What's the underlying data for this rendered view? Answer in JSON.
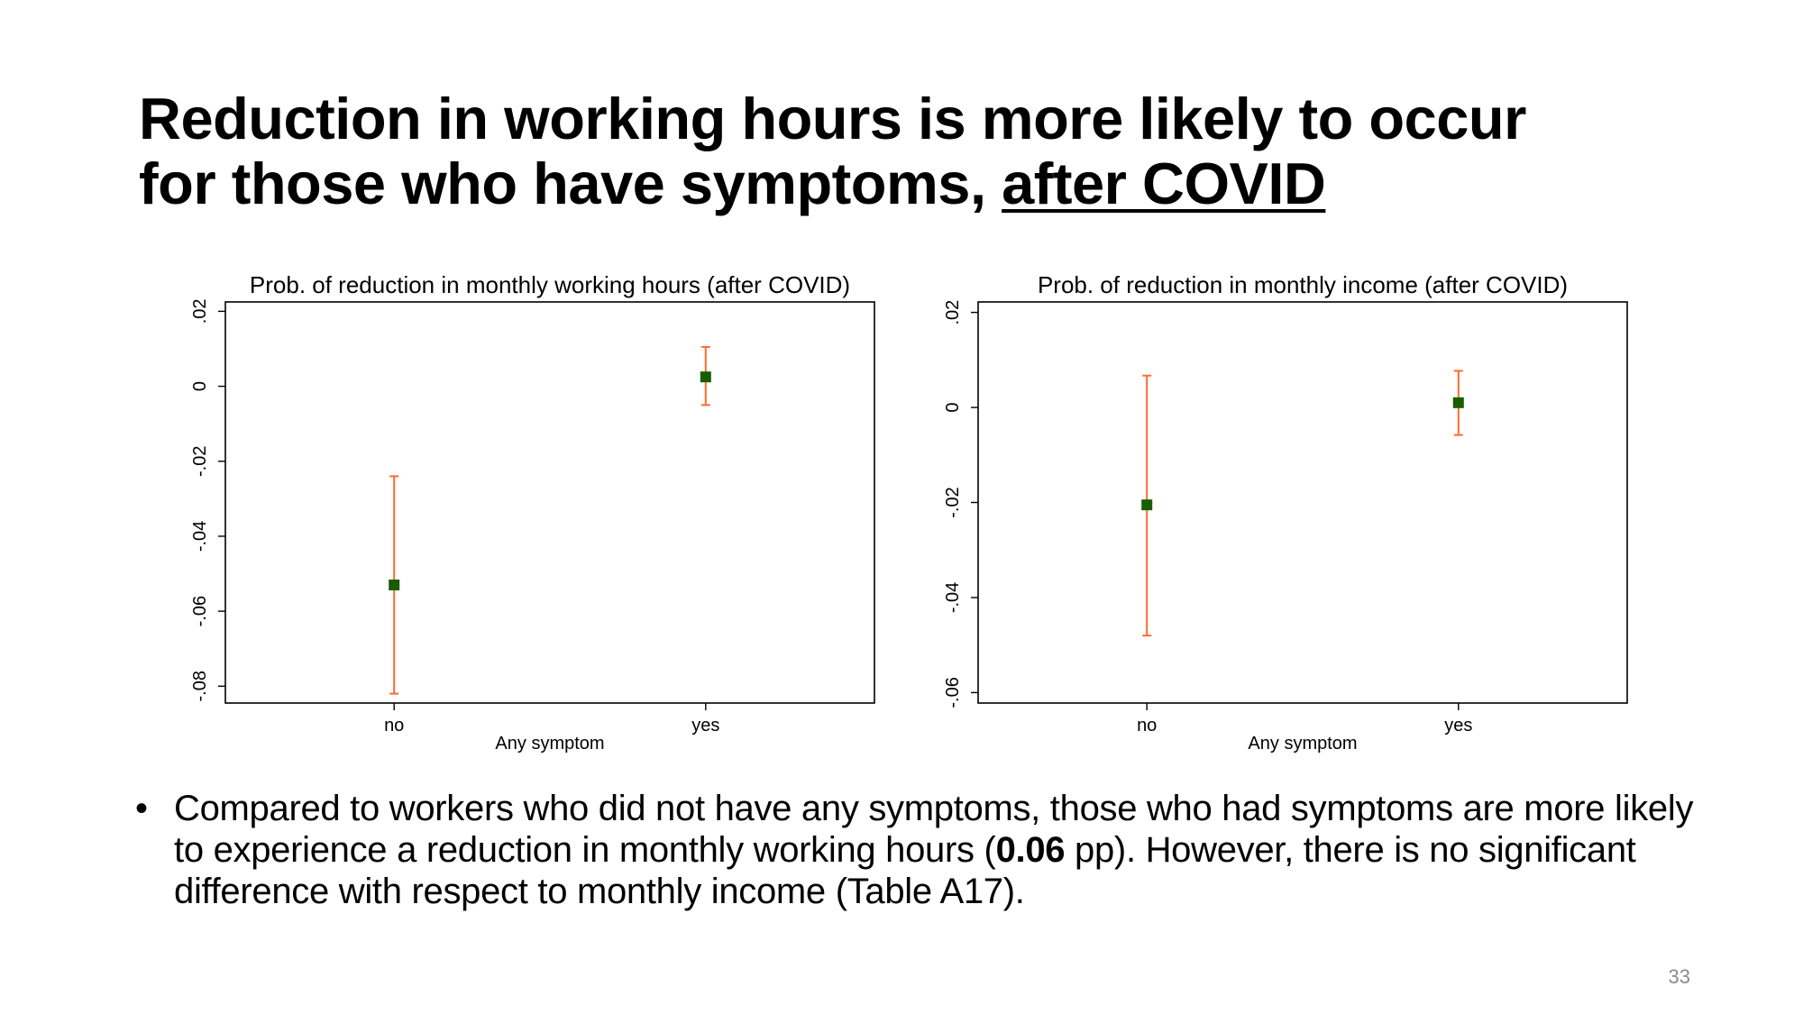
{
  "slide": {
    "title_line1": "Reduction in working hours is more likely to occur",
    "title_line2_prefix": "for those who have symptoms, ",
    "title_line2_emphasis": "after COVID",
    "page_number": "33"
  },
  "bullets": [
    {
      "text_before": "Compared to workers who did not have any symptoms, those who had symptoms are more likely to experience a reduction in monthly working hours (",
      "bold": "0.06",
      "text_after": " pp). However, there is no significant difference with respect to monthly income (Table A17)."
    }
  ],
  "chart_data": [
    {
      "id": "hours",
      "type": "scatter",
      "title": "Prob. of reduction in monthly working hours (after COVID)",
      "xlabel": "Any symptom",
      "ylabel": "",
      "categories": [
        "no",
        "yes"
      ],
      "points": [
        {
          "category": "no",
          "estimate": -0.053,
          "ci_low": -0.082,
          "ci_high": -0.024
        },
        {
          "category": "yes",
          "estimate": 0.0025,
          "ci_low": -0.005,
          "ci_high": 0.0105
        }
      ],
      "y_ticks": [
        {
          "value": 0.02,
          "label": ".02"
        },
        {
          "value": 0,
          "label": "0"
        },
        {
          "value": -0.02,
          "label": "-.02"
        },
        {
          "value": -0.04,
          "label": "-.04"
        },
        {
          "value": -0.06,
          "label": "-.06"
        },
        {
          "value": -0.08,
          "label": "-.08"
        }
      ],
      "ylim": [
        -0.0845,
        0.0225
      ],
      "grid": false,
      "legend": "none",
      "colors": {
        "marker": "#1a5d00",
        "ci": "#ff6a2e"
      }
    },
    {
      "id": "income",
      "type": "scatter",
      "title": "Prob. of reduction in monthly income (after COVID)",
      "xlabel": "Any symptom",
      "ylabel": "",
      "categories": [
        "no",
        "yes"
      ],
      "points": [
        {
          "category": "no",
          "estimate": -0.0205,
          "ci_low": -0.048,
          "ci_high": 0.0067
        },
        {
          "category": "yes",
          "estimate": 0.001,
          "ci_low": -0.0058,
          "ci_high": 0.0077
        }
      ],
      "y_ticks": [
        {
          "value": 0.02,
          "label": ".02"
        },
        {
          "value": 0,
          "label": "0"
        },
        {
          "value": -0.02,
          "label": "-.02"
        },
        {
          "value": -0.04,
          "label": "-.04"
        },
        {
          "value": -0.06,
          "label": "-.06"
        }
      ],
      "ylim": [
        -0.0622,
        0.0222
      ],
      "grid": false,
      "legend": "none",
      "colors": {
        "marker": "#1a5d00",
        "ci": "#ff6a2e"
      }
    }
  ]
}
